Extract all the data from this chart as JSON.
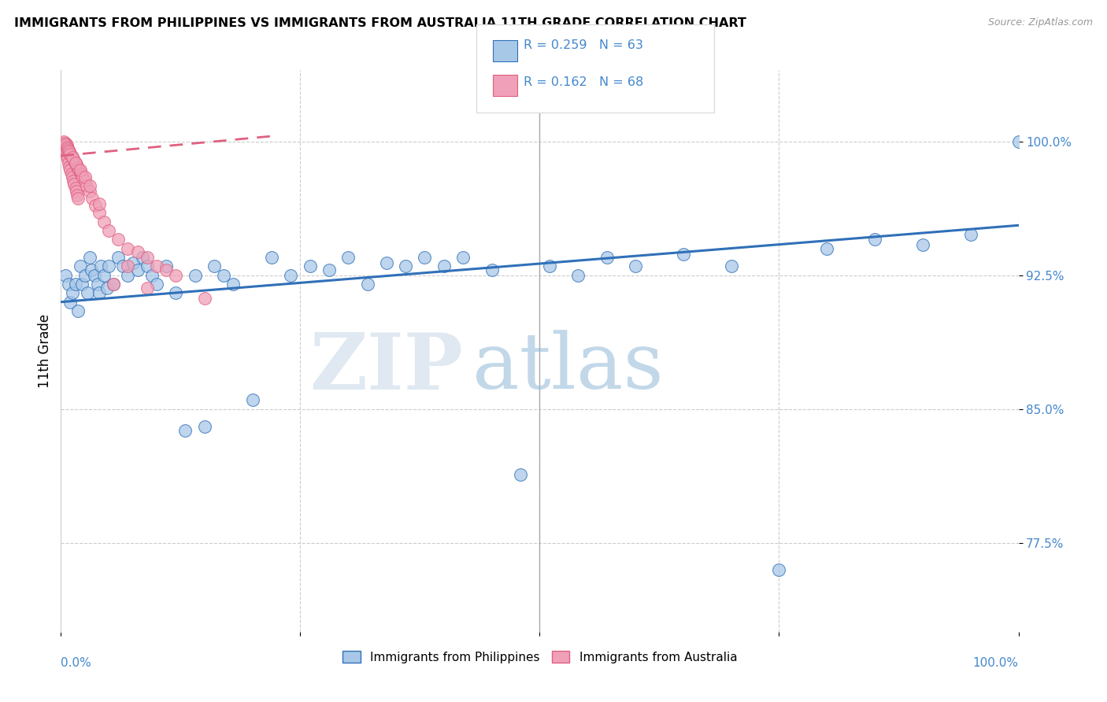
{
  "title": "IMMIGRANTS FROM PHILIPPINES VS IMMIGRANTS FROM AUSTRALIA 11TH GRADE CORRELATION CHART",
  "source": "Source: ZipAtlas.com",
  "ylabel": "11th Grade",
  "yticks": [
    0.775,
    0.85,
    0.925,
    1.0
  ],
  "ytick_labels": [
    "77.5%",
    "85.0%",
    "92.5%",
    "100.0%"
  ],
  "xmin": 0.0,
  "xmax": 1.0,
  "ymin": 0.725,
  "ymax": 1.04,
  "legend_r1": "R = 0.259",
  "legend_n1": "N = 63",
  "legend_r2": "R = 0.162",
  "legend_n2": "N = 68",
  "color_blue": "#a8c8e8",
  "color_pink": "#f0a0b8",
  "color_blue_line": "#3070b8",
  "color_pink_line": "#e06080",
  "color_blue_text": "#4488cc",
  "legend_label1": "Immigrants from Philippines",
  "legend_label2": "Immigrants from Australia",
  "watermark_zip": "ZIP",
  "watermark_atlas": "atlas",
  "blue_line_x0": 0.0,
  "blue_line_y0": 0.91,
  "blue_line_x1": 1.0,
  "blue_line_y1": 0.953,
  "pink_line_x0": 0.0,
  "pink_line_y0": 0.992,
  "pink_line_x1": 0.22,
  "pink_line_y1": 1.003,
  "blue_scatter_x": [
    0.005,
    0.008,
    0.01,
    0.012,
    0.015,
    0.018,
    0.02,
    0.022,
    0.025,
    0.028,
    0.03,
    0.032,
    0.035,
    0.038,
    0.04,
    0.042,
    0.045,
    0.048,
    0.05,
    0.055,
    0.06,
    0.065,
    0.07,
    0.075,
    0.08,
    0.085,
    0.09,
    0.095,
    0.1,
    0.11,
    0.12,
    0.13,
    0.14,
    0.15,
    0.16,
    0.17,
    0.18,
    0.2,
    0.22,
    0.24,
    0.26,
    0.28,
    0.3,
    0.32,
    0.34,
    0.36,
    0.38,
    0.4,
    0.42,
    0.45,
    0.48,
    0.51,
    0.54,
    0.57,
    0.6,
    0.65,
    0.7,
    0.75,
    0.8,
    0.85,
    0.9,
    0.95,
    1.0
  ],
  "blue_scatter_y": [
    0.925,
    0.92,
    0.91,
    0.915,
    0.92,
    0.905,
    0.93,
    0.92,
    0.925,
    0.915,
    0.935,
    0.928,
    0.925,
    0.92,
    0.915,
    0.93,
    0.925,
    0.918,
    0.93,
    0.92,
    0.935,
    0.93,
    0.925,
    0.932,
    0.928,
    0.935,
    0.93,
    0.925,
    0.92,
    0.93,
    0.915,
    0.838,
    0.925,
    0.84,
    0.93,
    0.925,
    0.92,
    0.855,
    0.935,
    0.925,
    0.93,
    0.928,
    0.935,
    0.92,
    0.932,
    0.93,
    0.935,
    0.93,
    0.935,
    0.928,
    0.813,
    0.93,
    0.925,
    0.935,
    0.93,
    0.937,
    0.93,
    0.76,
    0.94,
    0.945,
    0.942,
    0.948,
    1.0
  ],
  "pink_scatter_x": [
    0.003,
    0.004,
    0.005,
    0.005,
    0.006,
    0.006,
    0.007,
    0.007,
    0.008,
    0.008,
    0.009,
    0.009,
    0.01,
    0.01,
    0.011,
    0.011,
    0.012,
    0.012,
    0.013,
    0.013,
    0.014,
    0.014,
    0.015,
    0.015,
    0.016,
    0.016,
    0.017,
    0.017,
    0.018,
    0.018,
    0.019,
    0.02,
    0.021,
    0.022,
    0.023,
    0.025,
    0.027,
    0.03,
    0.033,
    0.036,
    0.04,
    0.045,
    0.05,
    0.06,
    0.07,
    0.08,
    0.09,
    0.1,
    0.11,
    0.12,
    0.003,
    0.004,
    0.005,
    0.006,
    0.007,
    0.008,
    0.009,
    0.01,
    0.012,
    0.015,
    0.02,
    0.025,
    0.03,
    0.04,
    0.055,
    0.07,
    0.09,
    0.15
  ],
  "pink_scatter_y": [
    0.998,
    0.996,
    0.999,
    0.995,
    0.998,
    0.992,
    0.996,
    0.99,
    0.995,
    0.988,
    0.994,
    0.986,
    0.993,
    0.984,
    0.992,
    0.982,
    0.991,
    0.98,
    0.99,
    0.978,
    0.989,
    0.976,
    0.988,
    0.974,
    0.987,
    0.972,
    0.986,
    0.97,
    0.985,
    0.968,
    0.984,
    0.983,
    0.982,
    0.981,
    0.98,
    0.978,
    0.975,
    0.972,
    0.968,
    0.964,
    0.96,
    0.955,
    0.95,
    0.945,
    0.94,
    0.938,
    0.935,
    0.93,
    0.928,
    0.925,
    1.0,
    0.999,
    0.998,
    0.997,
    0.996,
    0.995,
    0.994,
    0.993,
    0.991,
    0.988,
    0.984,
    0.98,
    0.975,
    0.965,
    0.92,
    0.93,
    0.918,
    0.912
  ]
}
